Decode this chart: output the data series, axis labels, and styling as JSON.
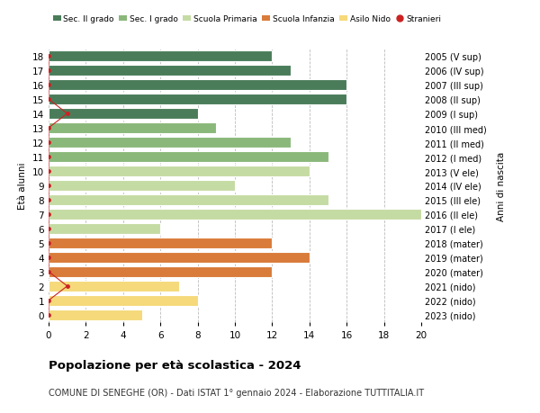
{
  "ages": [
    18,
    17,
    16,
    15,
    14,
    13,
    12,
    11,
    10,
    9,
    8,
    7,
    6,
    5,
    4,
    3,
    2,
    1,
    0
  ],
  "right_labels": [
    "2005 (V sup)",
    "2006 (IV sup)",
    "2007 (III sup)",
    "2008 (II sup)",
    "2009 (I sup)",
    "2010 (III med)",
    "2011 (II med)",
    "2012 (I med)",
    "2013 (V ele)",
    "2014 (IV ele)",
    "2015 (III ele)",
    "2016 (II ele)",
    "2017 (I ele)",
    "2018 (mater)",
    "2019 (mater)",
    "2020 (mater)",
    "2021 (nido)",
    "2022 (nido)",
    "2023 (nido)"
  ],
  "bar_values": [
    12,
    13,
    16,
    16,
    8,
    9,
    13,
    15,
    14,
    10,
    15,
    20,
    6,
    12,
    14,
    12,
    7,
    8,
    5
  ],
  "bar_colors": [
    "#4a7c59",
    "#4a7c59",
    "#4a7c59",
    "#4a7c59",
    "#4a7c59",
    "#8ab87a",
    "#8ab87a",
    "#8ab87a",
    "#c5dba4",
    "#c5dba4",
    "#c5dba4",
    "#c5dba4",
    "#c5dba4",
    "#d97b3a",
    "#d97b3a",
    "#d97b3a",
    "#f5d97a",
    "#f5d97a",
    "#f5d97a"
  ],
  "stranieri_x": [
    0,
    0,
    0,
    0,
    1,
    0,
    0,
    0,
    0,
    0,
    0,
    0,
    0,
    0,
    0,
    0,
    1,
    0,
    0
  ],
  "legend_labels": [
    "Sec. II grado",
    "Sec. I grado",
    "Scuola Primaria",
    "Scuola Infanzia",
    "Asilo Nido",
    "Stranieri"
  ],
  "legend_colors": [
    "#4a7c59",
    "#8ab87a",
    "#c5dba4",
    "#d97b3a",
    "#f5d97a",
    "#cc2222"
  ],
  "title": "Popolazione per età scolastica - 2024",
  "subtitle": "COMUNE DI SENEGHE (OR) - Dati ISTAT 1° gennaio 2024 - Elaborazione TUTTITALIA.IT",
  "ylabel_left": "Età alunni",
  "ylabel_right": "Anni di nascita",
  "xlim": [
    0,
    20
  ],
  "xticks": [
    0,
    2,
    4,
    6,
    8,
    10,
    12,
    14,
    16,
    18,
    20
  ],
  "bar_height": 0.78,
  "bg_color": "#ffffff",
  "grid_color": "#bbbbbb",
  "stranieri_color": "#cc2222"
}
